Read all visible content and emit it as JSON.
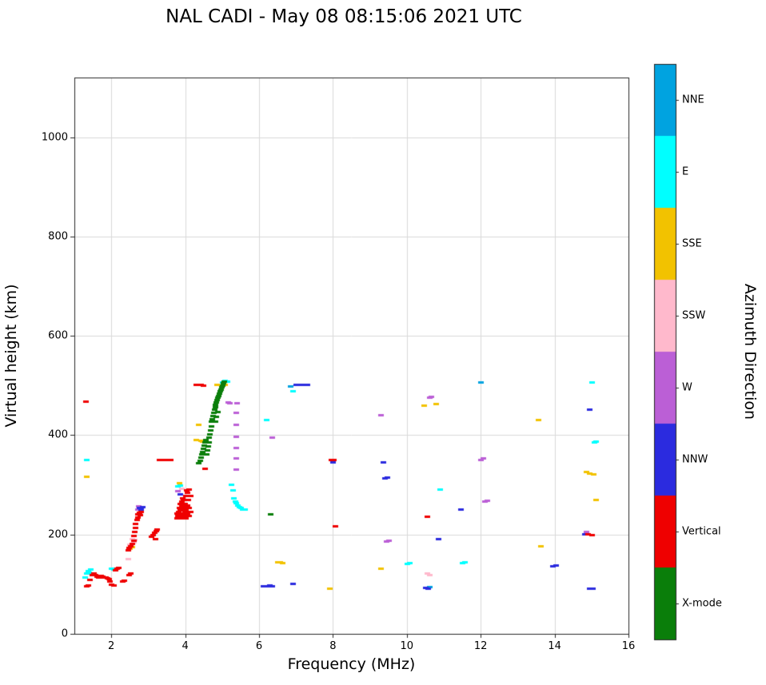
{
  "title": "NAL CADI - May 08 08:15:06 2021 UTC",
  "chart_data": {
    "type": "scatter",
    "title": "NAL CADI - May 08 08:15:06 2021 UTC",
    "xlabel": "Frequency (MHz)",
    "ylabel": "Virtual height (km)",
    "colorbar_label": "Azimuth Direction",
    "xlim": [
      1,
      16
    ],
    "ylim": [
      0,
      1120
    ],
    "xticks": [
      2,
      4,
      6,
      8,
      10,
      12,
      14,
      16
    ],
    "yticks": [
      0,
      200,
      400,
      600,
      800,
      1000
    ],
    "grid": true,
    "grid_color": "#d9d9d9",
    "axis_color": "#262626",
    "legend_position": "right-colorbar",
    "legend_order_top_to_bottom": [
      "NNE",
      "E",
      "SSE",
      "SSW",
      "W",
      "NNW",
      "Vertical",
      "X-mode"
    ],
    "series": [
      {
        "name": "NNE",
        "color": "#00A3E0",
        "points": [
          [
            6.85,
            498
          ],
          [
            10.62,
            93
          ],
          [
            12.0,
            505
          ]
        ]
      },
      {
        "name": "E",
        "color": "#00FFFF",
        "points": [
          [
            1.28,
            113
          ],
          [
            1.32,
            120
          ],
          [
            1.36,
            126
          ],
          [
            1.4,
            122
          ],
          [
            1.44,
            129
          ],
          [
            1.32,
            350
          ],
          [
            2.0,
            131
          ],
          [
            2.06,
            129
          ],
          [
            3.8,
            296
          ],
          [
            3.86,
            298
          ],
          [
            5.0,
            506
          ],
          [
            5.08,
            509
          ],
          [
            5.14,
            507
          ],
          [
            5.24,
            300
          ],
          [
            5.28,
            288
          ],
          [
            5.3,
            272
          ],
          [
            5.34,
            266
          ],
          [
            5.38,
            262
          ],
          [
            5.42,
            258
          ],
          [
            5.46,
            255
          ],
          [
            5.5,
            252
          ],
          [
            5.55,
            250
          ],
          [
            5.6,
            250
          ],
          [
            6.2,
            430
          ],
          [
            6.9,
            487
          ],
          [
            10.0,
            140
          ],
          [
            10.06,
            141
          ],
          [
            10.9,
            290
          ],
          [
            11.5,
            142
          ],
          [
            11.56,
            143
          ],
          [
            15.0,
            505
          ],
          [
            15.06,
            385
          ],
          [
            15.12,
            386
          ]
        ]
      },
      {
        "name": "SSE",
        "color": "#F2C200",
        "points": [
          [
            1.33,
            315
          ],
          [
            2.5,
            170
          ],
          [
            2.55,
            174
          ],
          [
            3.83,
            302
          ],
          [
            4.3,
            390
          ],
          [
            4.36,
            420
          ],
          [
            4.42,
            388
          ],
          [
            4.47,
            386
          ],
          [
            4.52,
            387
          ],
          [
            4.86,
            500
          ],
          [
            5.06,
            500
          ],
          [
            6.5,
            143
          ],
          [
            6.56,
            143
          ],
          [
            6.62,
            142
          ],
          [
            7.9,
            90
          ],
          [
            9.3,
            130
          ],
          [
            10.45,
            458
          ],
          [
            10.78,
            462
          ],
          [
            13.55,
            430
          ],
          [
            13.62,
            175
          ],
          [
            14.85,
            325
          ],
          [
            14.95,
            322
          ],
          [
            15.05,
            320
          ],
          [
            15.12,
            268
          ]
        ]
      },
      {
        "name": "SSW",
        "color": "#FFB9CC",
        "points": [
          [
            2.46,
            150
          ],
          [
            2.5,
            178
          ],
          [
            2.55,
            190
          ],
          [
            2.6,
            183
          ],
          [
            2.63,
            188
          ],
          [
            3.9,
            292
          ],
          [
            10.55,
            120
          ],
          [
            10.62,
            118
          ]
        ]
      },
      {
        "name": "W",
        "color": "#BB5FD6",
        "points": [
          [
            2.7,
            250
          ],
          [
            2.73,
            256
          ],
          [
            3.8,
            286
          ],
          [
            5.15,
            465
          ],
          [
            5.2,
            463
          ],
          [
            5.38,
            330
          ],
          [
            5.38,
            352
          ],
          [
            5.38,
            374
          ],
          [
            5.38,
            396
          ],
          [
            5.38,
            420
          ],
          [
            5.38,
            444
          ],
          [
            5.39,
            464
          ],
          [
            6.35,
            395
          ],
          [
            9.3,
            440
          ],
          [
            9.45,
            185
          ],
          [
            9.5,
            187
          ],
          [
            10.6,
            475
          ],
          [
            10.66,
            477
          ],
          [
            12.0,
            350
          ],
          [
            12.06,
            352
          ],
          [
            12.1,
            265
          ],
          [
            12.16,
            267
          ],
          [
            14.85,
            205
          ]
        ]
      },
      {
        "name": "NNW",
        "color": "#2B2BDF",
        "points": [
          [
            2.75,
            252
          ],
          [
            2.8,
            249
          ],
          [
            2.83,
            255
          ],
          [
            3.85,
            280
          ],
          [
            6.1,
            95
          ],
          [
            6.16,
            95
          ],
          [
            6.22,
            95
          ],
          [
            6.28,
            96
          ],
          [
            6.34,
            95
          ],
          [
            6.9,
            100
          ],
          [
            7.0,
            500
          ],
          [
            7.1,
            500
          ],
          [
            7.2,
            500
          ],
          [
            7.3,
            500
          ],
          [
            8.0,
            345
          ],
          [
            9.35,
            345
          ],
          [
            9.4,
            312
          ],
          [
            9.46,
            313
          ],
          [
            10.5,
            92
          ],
          [
            10.56,
            90
          ],
          [
            10.85,
            190
          ],
          [
            11.45,
            250
          ],
          [
            13.95,
            135
          ],
          [
            14.02,
            136
          ],
          [
            14.8,
            200
          ],
          [
            14.95,
            450
          ],
          [
            14.95,
            90
          ],
          [
            15.02,
            90
          ]
        ]
      },
      {
        "name": "Vertical",
        "color": "#EF0000",
        "points": [
          [
            1.32,
            95
          ],
          [
            1.36,
            97
          ],
          [
            1.42,
            108
          ],
          [
            1.48,
            118
          ],
          [
            1.52,
            120
          ],
          [
            1.56,
            117
          ],
          [
            1.6,
            115
          ],
          [
            1.64,
            113
          ],
          [
            1.68,
            115
          ],
          [
            1.72,
            116
          ],
          [
            1.76,
            114
          ],
          [
            1.8,
            113
          ],
          [
            1.84,
            112
          ],
          [
            1.88,
            111
          ],
          [
            1.92,
            109
          ],
          [
            1.96,
            104
          ],
          [
            2.0,
            98
          ],
          [
            2.05,
            96
          ],
          [
            2.1,
            127
          ],
          [
            2.14,
            130
          ],
          [
            2.18,
            132
          ],
          [
            2.3,
            104
          ],
          [
            2.34,
            106
          ],
          [
            1.3,
            467
          ],
          [
            2.48,
            118
          ],
          [
            2.52,
            121
          ],
          [
            2.44,
            168
          ],
          [
            2.48,
            172
          ],
          [
            2.52,
            176
          ],
          [
            2.56,
            180
          ],
          [
            2.6,
            186
          ],
          [
            2.6,
            196
          ],
          [
            2.63,
            204
          ],
          [
            2.65,
            212
          ],
          [
            2.65,
            221
          ],
          [
            2.68,
            228
          ],
          [
            2.7,
            234
          ],
          [
            2.72,
            239
          ],
          [
            2.75,
            243
          ],
          [
            2.78,
            238
          ],
          [
            2.8,
            244
          ],
          [
            3.08,
            194
          ],
          [
            3.12,
            198
          ],
          [
            3.16,
            202
          ],
          [
            3.2,
            206
          ],
          [
            3.24,
            210
          ],
          [
            3.18,
            190
          ],
          [
            3.3,
            350
          ],
          [
            3.36,
            350
          ],
          [
            3.42,
            350
          ],
          [
            3.48,
            350
          ],
          [
            3.54,
            350
          ],
          [
            3.6,
            350
          ],
          [
            3.76,
            232
          ],
          [
            3.76,
            241
          ],
          [
            3.79,
            236
          ],
          [
            3.82,
            231
          ],
          [
            3.82,
            245
          ],
          [
            3.84,
            252
          ],
          [
            3.86,
            237
          ],
          [
            3.86,
            249
          ],
          [
            3.86,
            261
          ],
          [
            3.89,
            241
          ],
          [
            3.89,
            257
          ],
          [
            3.91,
            232
          ],
          [
            3.91,
            248
          ],
          [
            3.91,
            265
          ],
          [
            3.93,
            272
          ],
          [
            3.95,
            236
          ],
          [
            3.95,
            253
          ],
          [
            3.95,
            269
          ],
          [
            3.98,
            244
          ],
          [
            3.98,
            261
          ],
          [
            4.0,
            232
          ],
          [
            4.0,
            249
          ],
          [
            4.0,
            277
          ],
          [
            4.03,
            288
          ],
          [
            4.05,
            240
          ],
          [
            4.05,
            257
          ],
          [
            4.05,
            284
          ],
          [
            4.08,
            268
          ],
          [
            4.1,
            236
          ],
          [
            4.1,
            253
          ],
          [
            4.1,
            290
          ],
          [
            4.13,
            244
          ],
          [
            4.13,
            276
          ],
          [
            4.3,
            500
          ],
          [
            4.36,
            500
          ],
          [
            4.42,
            500
          ],
          [
            4.48,
            499
          ],
          [
            4.52,
            332
          ],
          [
            7.95,
            350
          ],
          [
            8.02,
            349
          ],
          [
            8.06,
            215
          ],
          [
            10.55,
            235
          ],
          [
            14.9,
            200
          ],
          [
            15.0,
            198
          ]
        ]
      },
      {
        "name": "X-mode",
        "color": "#0A7E0A",
        "points": [
          [
            4.36,
            342
          ],
          [
            4.39,
            348
          ],
          [
            4.42,
            354
          ],
          [
            4.44,
            360
          ],
          [
            4.46,
            366
          ],
          [
            4.48,
            372
          ],
          [
            4.5,
            378
          ],
          [
            4.52,
            384
          ],
          [
            4.54,
            390
          ],
          [
            4.58,
            360
          ],
          [
            4.6,
            368
          ],
          [
            4.62,
            376
          ],
          [
            4.64,
            384
          ],
          [
            4.64,
            394
          ],
          [
            4.66,
            400
          ],
          [
            4.68,
            408
          ],
          [
            4.7,
            416
          ],
          [
            4.7,
            426
          ],
          [
            4.72,
            432
          ],
          [
            4.74,
            438
          ],
          [
            4.76,
            444
          ],
          [
            4.78,
            450
          ],
          [
            4.8,
            426
          ],
          [
            4.8,
            455
          ],
          [
            4.82,
            460
          ],
          [
            4.84,
            436
          ],
          [
            4.84,
            465
          ],
          [
            4.86,
            470
          ],
          [
            4.88,
            446
          ],
          [
            4.88,
            474
          ],
          [
            4.9,
            478
          ],
          [
            4.92,
            483
          ],
          [
            4.94,
            487
          ],
          [
            4.96,
            491
          ],
          [
            4.98,
            495
          ],
          [
            5.0,
            499
          ],
          [
            5.02,
            503
          ],
          [
            5.04,
            507
          ],
          [
            6.3,
            240
          ]
        ]
      }
    ]
  }
}
